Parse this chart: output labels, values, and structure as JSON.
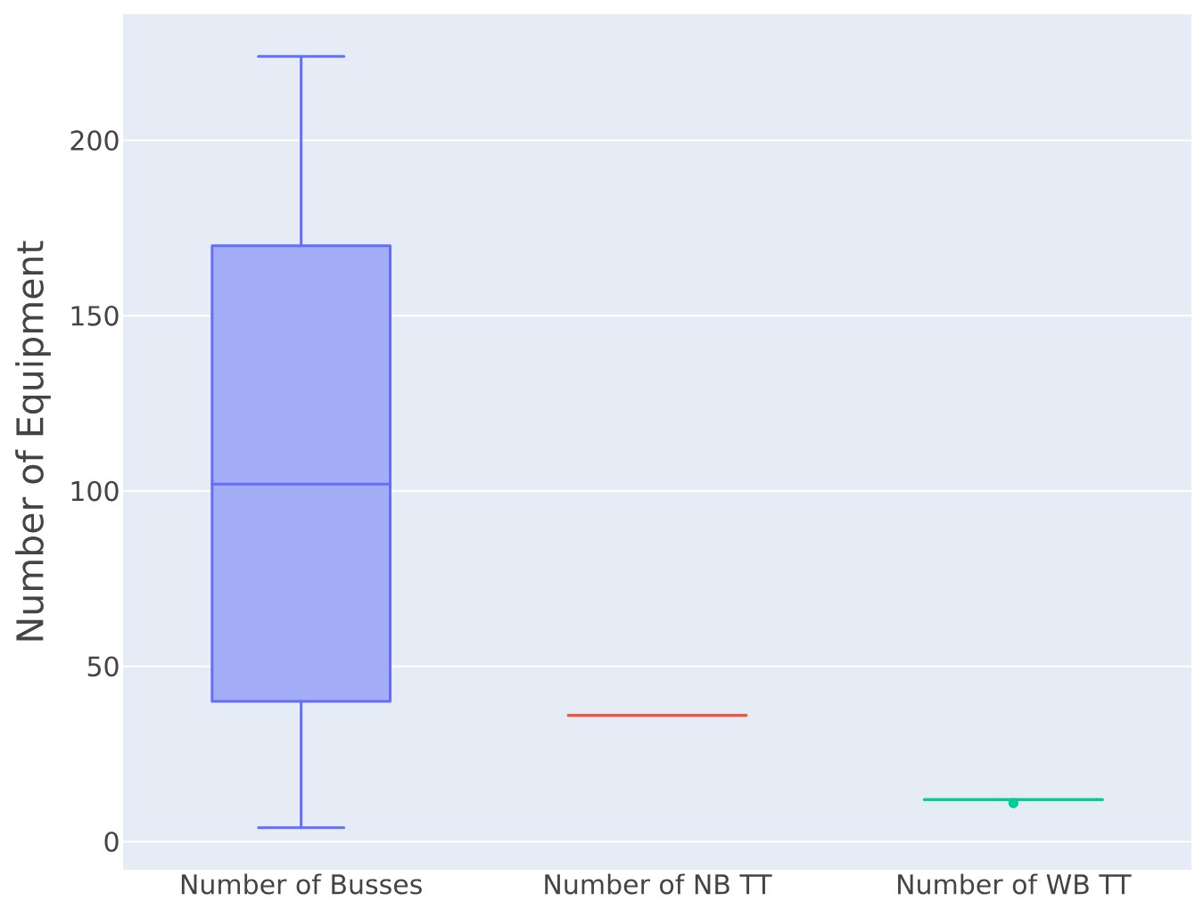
{
  "chart_data": {
    "type": "box",
    "ylabel": "Number of Equipment",
    "categories": [
      "Number of Busses",
      "Number of NB TT",
      "Number of WB TT"
    ],
    "boxes": [
      {
        "low": 4,
        "q1": 40,
        "median": 102,
        "q3": 170,
        "high": 224
      },
      {
        "low": 36,
        "q1": 36,
        "median": 36,
        "q3": 36,
        "high": 36
      },
      {
        "low": 12,
        "q1": 12,
        "median": 12,
        "q3": 12,
        "high": 12,
        "outliers": [
          11
        ]
      }
    ],
    "colors": [
      "#636efa",
      "#ef553b",
      "#00cc96"
    ],
    "ylim": [
      -8,
      236
    ],
    "yticks": [
      0,
      50,
      100,
      150,
      200
    ],
    "grid": "y",
    "marker": "circle"
  }
}
